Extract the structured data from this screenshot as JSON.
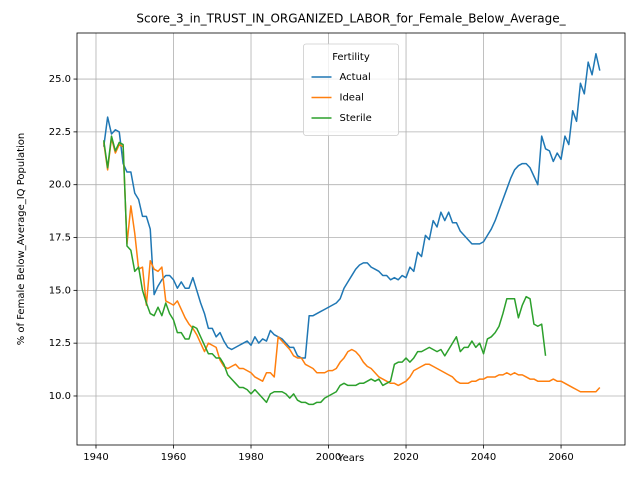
{
  "chart_data": {
    "type": "line",
    "title": "Score_3_in_TRUST_IN_ORGANIZED_LABOR_for_Female_Below_Average_",
    "xlabel": "Years",
    "ylabel": "% of Female Below_Average_IQ Population",
    "legend_title": "Fertility",
    "legend": "upper center",
    "grid": true,
    "xlim": [
      1935.1,
      2076.5
    ],
    "ylim": [
      7.68,
      27.18
    ],
    "xticks": [
      1940,
      1960,
      1980,
      2000,
      2020,
      2040,
      2060
    ],
    "yticks": [
      {
        "value": 10,
        "label": "10.0"
      },
      12.5,
      {
        "value": 15,
        "label": "15.0"
      },
      17.5,
      {
        "value": 20,
        "label": "20.0"
      },
      22.5,
      {
        "value": 25,
        "label": "25.0"
      }
    ],
    "x": [
      1942,
      1943,
      1944,
      1945,
      1946,
      1947,
      1948,
      1949,
      1950,
      1951,
      1952,
      1953,
      1954,
      1955,
      1956,
      1957,
      1958,
      1959,
      1960,
      1961,
      1962,
      1963,
      1964,
      1965,
      1966,
      1967,
      1968,
      1969,
      1970,
      1971,
      1972,
      1973,
      1974,
      1975,
      1976,
      1977,
      1978,
      1979,
      1980,
      1981,
      1982,
      1983,
      1984,
      1985,
      1986,
      1987,
      1988,
      1989,
      1990,
      1991,
      1992,
      1993,
      1994,
      1995,
      1996,
      1997,
      1998,
      1999,
      2000,
      2001,
      2002,
      2003,
      2004,
      2005,
      2006,
      2007,
      2008,
      2009,
      2010,
      2011,
      2012,
      2013,
      2014,
      2015,
      2016,
      2017,
      2018,
      2019,
      2020,
      2021,
      2022,
      2023,
      2024,
      2025,
      2026,
      2027,
      2028,
      2029,
      2030,
      2031,
      2032,
      2033,
      2034,
      2035,
      2036,
      2037,
      2038,
      2039,
      2040,
      2041,
      2042,
      2043,
      2044,
      2045,
      2046,
      2047,
      2048,
      2049,
      2050,
      2051,
      2052,
      2053,
      2054,
      2055,
      2056,
      2057,
      2058,
      2059,
      2060,
      2061,
      2062,
      2063,
      2064,
      2065,
      2066,
      2067,
      2068,
      2069,
      2070
    ],
    "series": [
      {
        "name": "Actual",
        "color": "#1f77b4",
        "values": [
          21.8,
          23.2,
          22.4,
          22.6,
          22.5,
          21.0,
          20.6,
          20.6,
          19.6,
          19.3,
          18.5,
          18.5,
          17.9,
          14.8,
          15.2,
          15.5,
          15.7,
          15.7,
          15.5,
          15.1,
          15.4,
          15.1,
          15.1,
          15.6,
          15.0,
          14.4,
          13.9,
          13.2,
          13.2,
          12.8,
          13.0,
          12.6,
          12.3,
          12.2,
          12.3,
          12.4,
          12.5,
          12.6,
          12.4,
          12.8,
          12.5,
          12.7,
          12.6,
          13.1,
          12.9,
          12.8,
          12.7,
          12.5,
          12.3,
          12.3,
          11.9,
          11.8,
          11.8,
          13.8,
          13.8,
          13.9,
          14.0,
          14.1,
          14.2,
          14.3,
          14.4,
          14.6,
          15.1,
          15.4,
          15.7,
          16.0,
          16.2,
          16.3,
          16.3,
          16.1,
          16.0,
          15.9,
          15.7,
          15.7,
          15.5,
          15.6,
          15.5,
          15.7,
          15.6,
          16.1,
          15.9,
          16.8,
          16.6,
          17.6,
          17.4,
          18.3,
          18.0,
          18.7,
          18.3,
          18.7,
          18.2,
          18.2,
          17.8,
          17.6,
          17.4,
          17.2,
          17.2,
          17.2,
          17.3,
          17.6,
          17.9,
          18.3,
          18.8,
          19.3,
          19.8,
          20.3,
          20.7,
          20.9,
          21.0,
          21.0,
          20.8,
          20.4,
          20.0,
          22.3,
          21.7,
          21.6,
          21.1,
          21.5,
          21.2,
          22.3,
          21.9,
          23.5,
          23.0,
          24.8,
          24.3,
          25.8,
          25.2,
          26.2,
          25.4
        ]
      },
      {
        "name": "Ideal",
        "color": "#ff7f0e",
        "values": [
          22.0,
          20.7,
          22.2,
          21.5,
          21.9,
          21.8,
          17.2,
          19.0,
          17.7,
          16.0,
          16.1,
          14.3,
          16.4,
          16.0,
          15.9,
          16.1,
          14.5,
          14.4,
          14.3,
          14.5,
          14.1,
          13.7,
          13.4,
          13.2,
          12.9,
          12.5,
          12.1,
          12.5,
          12.4,
          12.3,
          11.7,
          11.4,
          11.3,
          11.4,
          11.5,
          11.3,
          11.3,
          11.2,
          11.1,
          10.9,
          10.8,
          10.7,
          11.1,
          11.1,
          10.9,
          12.8,
          12.6,
          12.4,
          12.2,
          11.9,
          11.8,
          11.8,
          11.5,
          11.4,
          11.3,
          11.1,
          11.1,
          11.1,
          11.2,
          11.2,
          11.3,
          11.6,
          11.8,
          12.1,
          12.2,
          12.1,
          11.9,
          11.6,
          11.4,
          11.3,
          11.1,
          10.9,
          10.8,
          10.7,
          10.6,
          10.6,
          10.5,
          10.6,
          10.7,
          10.9,
          11.2,
          11.3,
          11.4,
          11.5,
          11.5,
          11.4,
          11.3,
          11.2,
          11.1,
          11.0,
          10.9,
          10.7,
          10.6,
          10.6,
          10.6,
          10.7,
          10.7,
          10.8,
          10.8,
          10.9,
          10.9,
          10.9,
          11.0,
          11.0,
          11.1,
          11.0,
          11.1,
          11.0,
          11.0,
          10.9,
          10.8,
          10.8,
          10.7,
          10.7,
          10.7,
          10.7,
          10.8,
          10.7,
          10.7,
          10.6,
          10.5,
          10.4,
          10.3,
          10.2,
          10.2,
          10.2,
          10.2,
          10.2,
          10.4
        ]
      },
      {
        "name": "Sterile",
        "color": "#2ca02c",
        "values": [
          22.1,
          20.8,
          22.3,
          21.6,
          22.0,
          21.9,
          17.1,
          16.9,
          15.9,
          16.1,
          15.0,
          14.4,
          13.9,
          13.8,
          14.2,
          13.8,
          14.4,
          13.9,
          13.6,
          13.0,
          13.0,
          12.7,
          12.7,
          13.3,
          13.2,
          12.8,
          12.4,
          12.0,
          12.0,
          11.8,
          11.8,
          11.5,
          11.0,
          10.8,
          10.6,
          10.4,
          10.4,
          10.3,
          10.1,
          10.3,
          10.1,
          9.9,
          9.7,
          10.1,
          10.2,
          10.2,
          10.2,
          10.1,
          9.9,
          10.1,
          9.8,
          9.7,
          9.7,
          9.6,
          9.6,
          9.7,
          9.7,
          9.9,
          10.0,
          10.1,
          10.2,
          10.5,
          10.6,
          10.5,
          10.5,
          10.5,
          10.6,
          10.6,
          10.7,
          10.8,
          10.7,
          10.8,
          10.5,
          10.6,
          10.7,
          11.5,
          11.6,
          11.6,
          11.8,
          11.6,
          11.8,
          12.1,
          12.1,
          12.2,
          12.3,
          12.2,
          12.1,
          12.2,
          11.9,
          12.2,
          12.5,
          12.8,
          12.1,
          12.3,
          12.3,
          12.6,
          12.3,
          12.5,
          12.0,
          12.7,
          12.8,
          13.0,
          13.3,
          13.9,
          14.6,
          14.6,
          14.6,
          13.7,
          14.3,
          14.7,
          14.6,
          13.4,
          13.3,
          13.4,
          11.9,
          null,
          null,
          null,
          null,
          null,
          null,
          null,
          null,
          null,
          null,
          null,
          null,
          null,
          null
        ]
      }
    ]
  }
}
